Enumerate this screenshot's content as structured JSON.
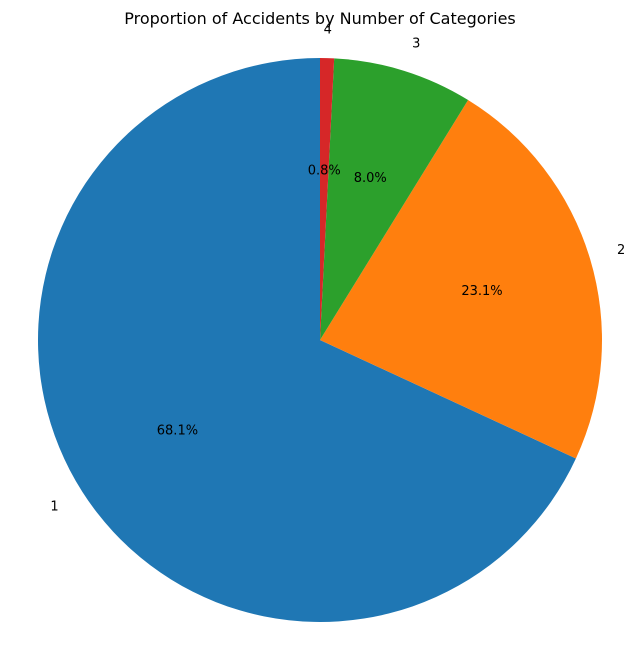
{
  "chart_data": {
    "type": "pie",
    "title": "Proportion of Accidents by Number of Categories",
    "categories": [
      "1",
      "2",
      "3",
      "4"
    ],
    "values": [
      68.1,
      23.1,
      8.0,
      0.8
    ],
    "value_labels": [
      "68.1%",
      "23.1%",
      "8.0%",
      "0.8%"
    ],
    "colors": [
      "#1f77b4",
      "#ff7f0e",
      "#2ca02c",
      "#d62728"
    ],
    "start_angle_deg": 90,
    "direction": "counterclockwise",
    "legend": "none"
  }
}
